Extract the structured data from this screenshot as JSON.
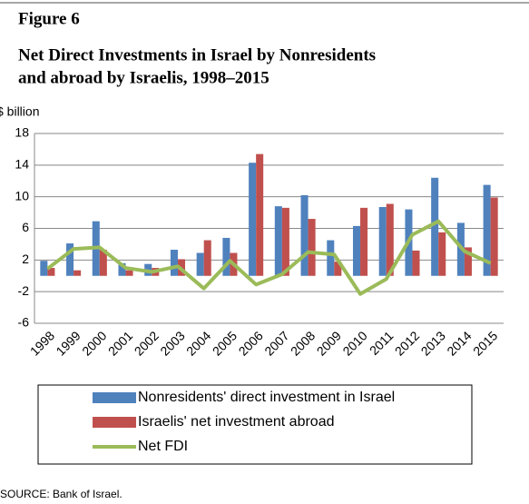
{
  "chart_data": {
    "type": "bar_line",
    "figure_label": "Figure 6",
    "title_lines": [
      "Net Direct Investments in Israel by Nonresidents",
      "and abroad by Israelis, 1998–2015"
    ],
    "y_label": "$ billion",
    "categories": [
      "1998",
      "1999",
      "2000",
      "2001",
      "2002",
      "2003",
      "2004",
      "2005",
      "2006",
      "2007",
      "2008",
      "2009",
      "2010",
      "2011",
      "2012",
      "2013",
      "2014",
      "2015"
    ],
    "series": [
      {
        "name": "Nonresidents' direct investment in Israel",
        "type": "bar",
        "color": "#4f81bd",
        "values": [
          1.9,
          4.1,
          6.9,
          1.6,
          1.5,
          3.3,
          2.9,
          4.8,
          14.3,
          8.8,
          10.2,
          4.5,
          6.3,
          8.7,
          8.4,
          12.4,
          6.7,
          11.5
        ]
      },
      {
        "name": "Israelis' net investment abroad",
        "type": "bar",
        "color": "#c0504d",
        "values": [
          1.0,
          0.7,
          3.3,
          0.7,
          1.0,
          2.1,
          4.5,
          2.9,
          15.4,
          8.6,
          7.2,
          1.8,
          8.6,
          9.1,
          3.2,
          5.5,
          3.6,
          9.9
        ]
      },
      {
        "name": "Net FDI",
        "type": "line",
        "color": "#9bbb59",
        "values": [
          0.9,
          3.4,
          3.6,
          1.0,
          0.5,
          1.2,
          -1.6,
          1.9,
          -1.1,
          0.2,
          3.0,
          2.7,
          -2.3,
          -0.4,
          5.2,
          6.9,
          3.1,
          1.6
        ]
      }
    ],
    "ylim": [
      -6,
      18
    ],
    "yticks": [
      -6,
      -2,
      2,
      6,
      10,
      14,
      18
    ],
    "grid": true,
    "source": "SOURCE: Bank of Israel."
  }
}
